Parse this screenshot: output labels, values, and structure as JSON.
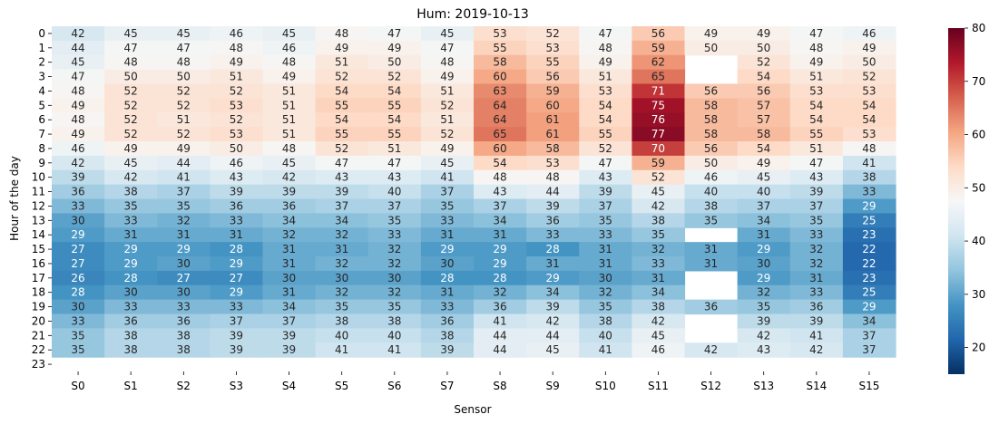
{
  "chart_data": {
    "type": "heatmap",
    "title": "Hum: 2019-10-13",
    "xlabel": "Sensor",
    "ylabel": "Hour of the day",
    "columns": [
      "S0",
      "S1",
      "S2",
      "S3",
      "S4",
      "S5",
      "S6",
      "S7",
      "S8",
      "S9",
      "S10",
      "S11",
      "S12",
      "S13",
      "S14",
      "S15"
    ],
    "rows": [
      "0",
      "1",
      "2",
      "3",
      "4",
      "5",
      "6",
      "7",
      "8",
      "9",
      "10",
      "11",
      "12",
      "13",
      "14",
      "15",
      "16",
      "17",
      "18",
      "19",
      "20",
      "21",
      "22",
      "23"
    ],
    "values": [
      [
        42,
        45,
        45,
        46,
        45,
        48,
        47,
        45,
        53,
        52,
        47,
        56,
        49,
        49,
        47,
        46
      ],
      [
        44,
        47,
        47,
        48,
        46,
        49,
        49,
        47,
        55,
        53,
        48,
        59,
        50,
        50,
        48,
        49
      ],
      [
        45,
        48,
        48,
        49,
        48,
        51,
        50,
        48,
        58,
        55,
        49,
        62,
        null,
        52,
        49,
        50
      ],
      [
        47,
        50,
        50,
        51,
        49,
        52,
        52,
        49,
        60,
        56,
        51,
        65,
        null,
        54,
        51,
        52
      ],
      [
        48,
        52,
        52,
        52,
        51,
        54,
        54,
        51,
        63,
        59,
        53,
        71,
        56,
        56,
        53,
        53
      ],
      [
        49,
        52,
        52,
        53,
        51,
        55,
        55,
        52,
        64,
        60,
        54,
        75,
        58,
        57,
        54,
        54
      ],
      [
        48,
        52,
        51,
        52,
        51,
        54,
        54,
        51,
        64,
        61,
        54,
        76,
        58,
        57,
        54,
        54
      ],
      [
        49,
        52,
        52,
        53,
        51,
        55,
        55,
        52,
        65,
        61,
        55,
        77,
        58,
        58,
        55,
        53
      ],
      [
        46,
        49,
        49,
        50,
        48,
        52,
        51,
        49,
        60,
        58,
        52,
        70,
        56,
        54,
        51,
        48
      ],
      [
        42,
        45,
        44,
        46,
        45,
        47,
        47,
        45,
        54,
        53,
        47,
        59,
        50,
        49,
        47,
        41
      ],
      [
        39,
        42,
        41,
        43,
        42,
        43,
        43,
        41,
        48,
        48,
        43,
        52,
        46,
        45,
        43,
        38
      ],
      [
        36,
        38,
        37,
        39,
        39,
        39,
        40,
        37,
        43,
        44,
        39,
        45,
        40,
        40,
        39,
        33
      ],
      [
        33,
        35,
        35,
        36,
        36,
        37,
        37,
        35,
        37,
        39,
        37,
        42,
        38,
        37,
        37,
        29
      ],
      [
        30,
        33,
        32,
        33,
        34,
        34,
        35,
        33,
        34,
        36,
        35,
        38,
        35,
        34,
        35,
        25
      ],
      [
        29,
        31,
        31,
        31,
        32,
        32,
        33,
        31,
        31,
        33,
        33,
        35,
        null,
        31,
        33,
        23
      ],
      [
        27,
        29,
        29,
        28,
        31,
        31,
        32,
        29,
        29,
        28,
        31,
        32,
        31,
        29,
        32,
        22
      ],
      [
        27,
        29,
        30,
        29,
        31,
        32,
        32,
        30,
        29,
        31,
        31,
        33,
        31,
        30,
        32,
        22
      ],
      [
        26,
        28,
        27,
        27,
        30,
        30,
        30,
        28,
        28,
        29,
        30,
        31,
        null,
        29,
        31,
        23
      ],
      [
        28,
        30,
        30,
        29,
        31,
        32,
        32,
        31,
        32,
        34,
        32,
        34,
        null,
        32,
        33,
        25
      ],
      [
        30,
        33,
        33,
        33,
        34,
        35,
        35,
        33,
        36,
        39,
        35,
        38,
        36,
        35,
        36,
        29
      ],
      [
        33,
        36,
        36,
        37,
        37,
        38,
        38,
        36,
        41,
        42,
        38,
        42,
        null,
        39,
        39,
        34
      ],
      [
        35,
        38,
        38,
        39,
        39,
        40,
        40,
        38,
        44,
        44,
        40,
        45,
        null,
        42,
        41,
        37
      ],
      [
        35,
        38,
        38,
        39,
        39,
        41,
        41,
        39,
        44,
        45,
        41,
        46,
        42,
        43,
        42,
        37
      ],
      [
        null,
        null,
        null,
        null,
        null,
        null,
        null,
        null,
        null,
        null,
        null,
        null,
        null,
        null,
        null,
        null
      ]
    ],
    "colorbar": {
      "colormap": "RdBu_r",
      "vmin": 15,
      "vmax": 80,
      "ticks": [
        20,
        30,
        40,
        50,
        60,
        70,
        80
      ]
    },
    "annotations": true,
    "grid": false
  }
}
